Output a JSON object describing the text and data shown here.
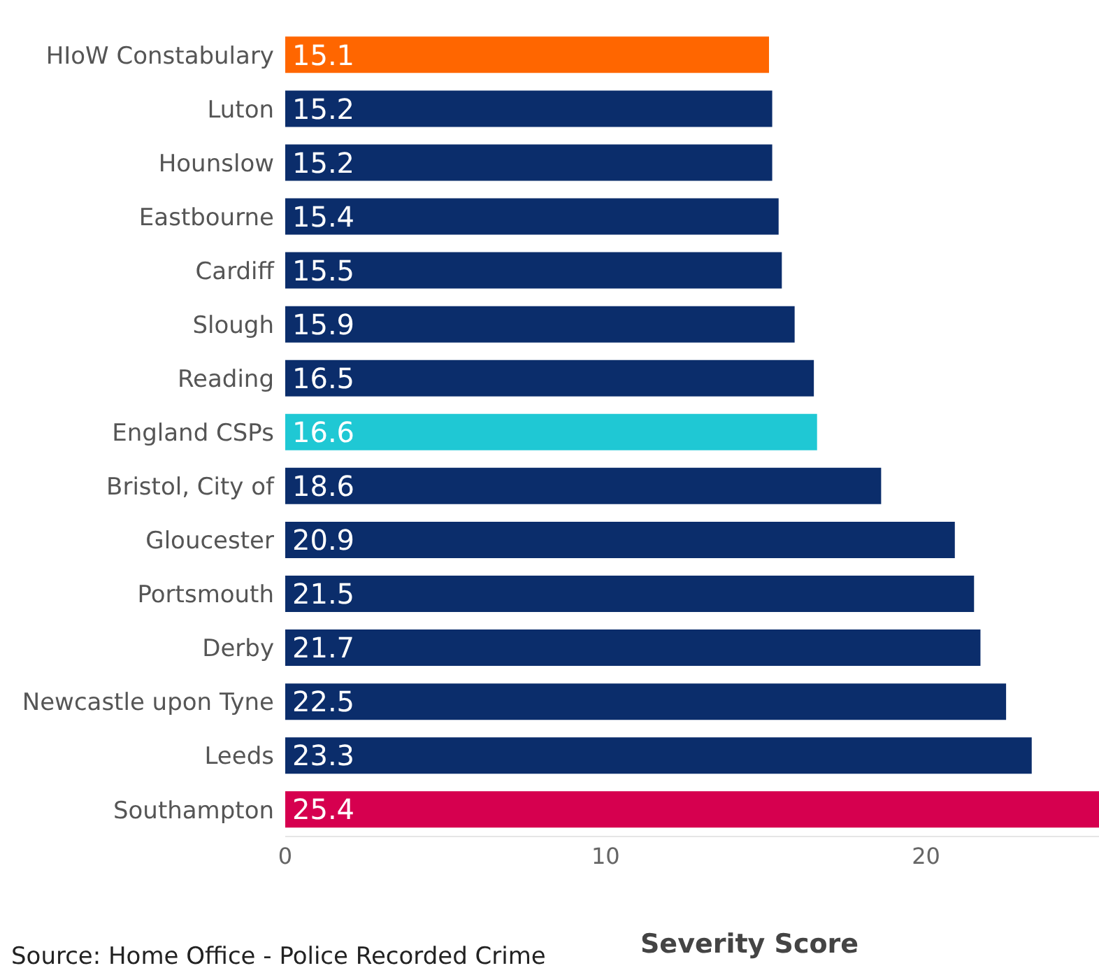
{
  "chart_data": {
    "type": "bar",
    "orientation": "horizontal",
    "xlabel": "Severity Score",
    "categories": [
      "HIoW Constabulary",
      "Luton",
      "Hounslow",
      "Eastbourne",
      "Cardiff",
      "Slough",
      "Reading",
      "England CSPs",
      "Bristol, City of",
      "Gloucester",
      "Portsmouth",
      "Derby",
      "Newcastle upon Tyne",
      "Leeds",
      "Southampton"
    ],
    "values": [
      15.1,
      15.2,
      15.2,
      15.4,
      15.5,
      15.9,
      16.5,
      16.6,
      18.6,
      20.9,
      21.5,
      21.7,
      22.5,
      23.3,
      25.4
    ],
    "colors": [
      "#ff6600",
      "#0b2d6b",
      "#0b2d6b",
      "#0b2d6b",
      "#0b2d6b",
      "#0b2d6b",
      "#0b2d6b",
      "#1fc8d4",
      "#0b2d6b",
      "#0b2d6b",
      "#0b2d6b",
      "#0b2d6b",
      "#0b2d6b",
      "#0b2d6b",
      "#d6004f"
    ],
    "xlim": [
      0,
      25.4
    ],
    "xticks": [
      0,
      10,
      20
    ],
    "grid": false,
    "legend": false,
    "data_labels": true,
    "annotations": [
      "Source: Home Office - Police Recorded Crime"
    ]
  }
}
